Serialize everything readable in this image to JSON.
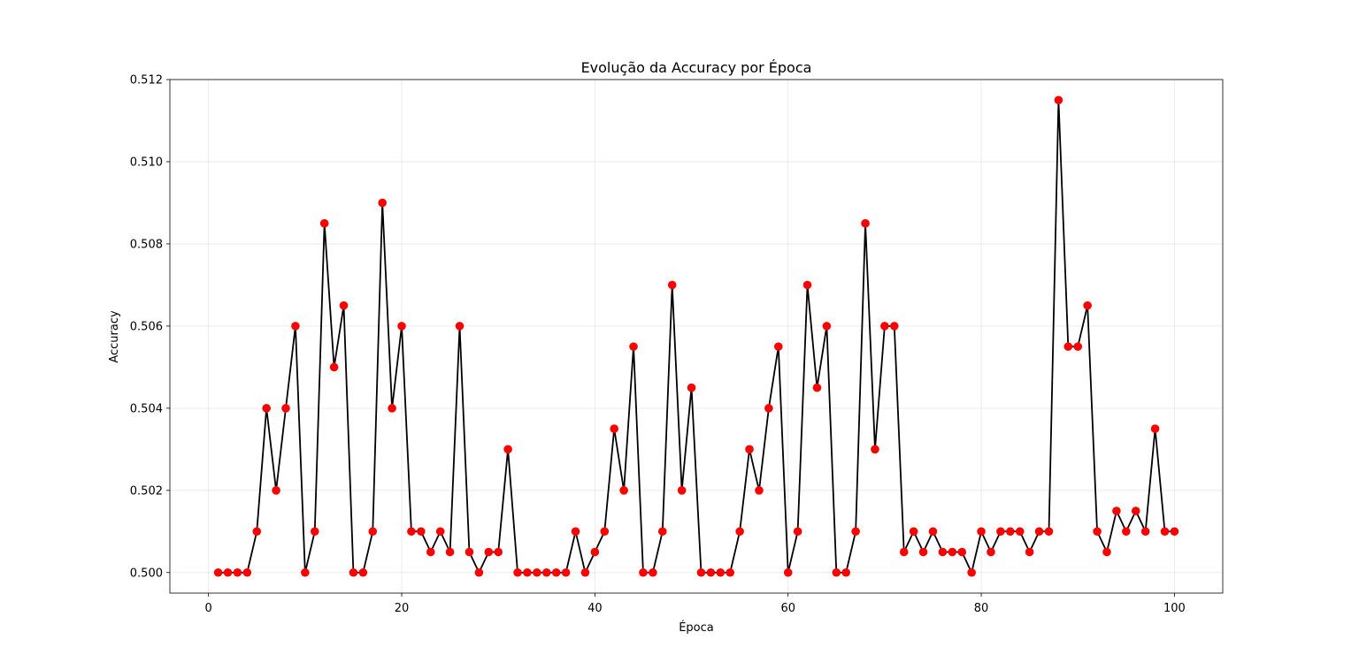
{
  "chart_data": {
    "type": "line",
    "title": "Evolução da Accuracy por Época",
    "xlabel": "Época",
    "ylabel": "Accuracy",
    "xlim": [
      -4,
      105
    ],
    "ylim": [
      0.4995,
      0.512
    ],
    "xticks": [
      0,
      20,
      40,
      60,
      80,
      100
    ],
    "xtick_labels": [
      "0",
      "20",
      "40",
      "60",
      "80",
      "100"
    ],
    "yticks": [
      0.5,
      0.502,
      0.504,
      0.506,
      0.508,
      0.51,
      0.512
    ],
    "ytick_labels": [
      "0.500",
      "0.502",
      "0.504",
      "0.506",
      "0.508",
      "0.510",
      "0.512"
    ],
    "grid": true,
    "line_color": "#000000",
    "marker_color": "#ff0000",
    "x": [
      1,
      2,
      3,
      4,
      5,
      6,
      7,
      8,
      9,
      10,
      11,
      12,
      13,
      14,
      15,
      16,
      17,
      18,
      19,
      20,
      21,
      22,
      23,
      24,
      25,
      26,
      27,
      28,
      29,
      30,
      31,
      32,
      33,
      34,
      35,
      36,
      37,
      38,
      39,
      40,
      41,
      42,
      43,
      44,
      45,
      46,
      47,
      48,
      49,
      50,
      51,
      52,
      53,
      54,
      55,
      56,
      57,
      58,
      59,
      60,
      61,
      62,
      63,
      64,
      65,
      66,
      67,
      68,
      69,
      70,
      71,
      72,
      73,
      74,
      75,
      76,
      77,
      78,
      79,
      80,
      81,
      82,
      83,
      84,
      85,
      86,
      87,
      88,
      89,
      90,
      91,
      92,
      93,
      94,
      95,
      96,
      97,
      98,
      99,
      100
    ],
    "y": [
      0.5,
      0.5,
      0.5,
      0.5,
      0.501,
      0.504,
      0.502,
      0.504,
      0.506,
      0.5,
      0.501,
      0.5085,
      0.505,
      0.5065,
      0.5,
      0.5,
      0.501,
      0.509,
      0.504,
      0.506,
      0.501,
      0.501,
      0.5005,
      0.501,
      0.5005,
      0.506,
      0.5005,
      0.5,
      0.5005,
      0.5005,
      0.503,
      0.5,
      0.5,
      0.5,
      0.5,
      0.5,
      0.5,
      0.501,
      0.5,
      0.5005,
      0.501,
      0.5035,
      0.502,
      0.5055,
      0.5,
      0.5,
      0.501,
      0.507,
      0.502,
      0.5045,
      0.5,
      0.5,
      0.5,
      0.5,
      0.501,
      0.503,
      0.502,
      0.504,
      0.5055,
      0.5,
      0.501,
      0.507,
      0.5045,
      0.506,
      0.5,
      0.5,
      0.501,
      0.5085,
      0.503,
      0.506,
      0.506,
      0.5005,
      0.501,
      0.5005,
      0.501,
      0.5005,
      0.5005,
      0.5005,
      0.5,
      0.501,
      0.5005,
      0.501,
      0.501,
      0.501,
      0.5005,
      0.501,
      0.501,
      0.5115,
      0.5055,
      0.5055,
      0.5065,
      0.501,
      0.5005,
      0.5015,
      0.501,
      0.5015,
      0.501,
      0.5035,
      0.501,
      0.501
    ]
  }
}
